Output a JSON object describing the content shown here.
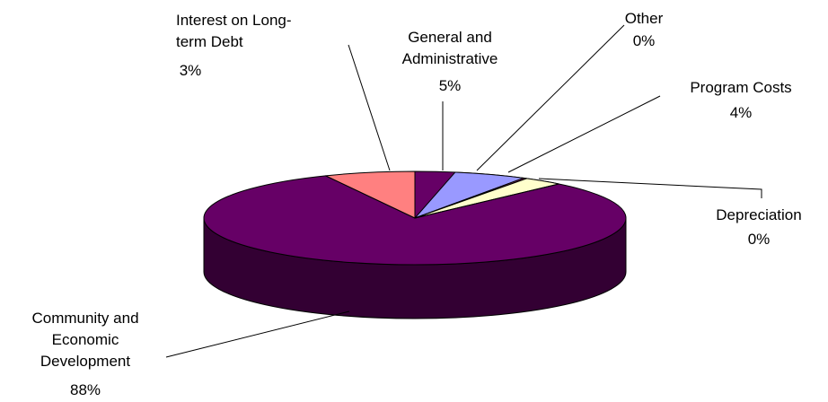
{
  "chart_data": {
    "type": "pie",
    "style": "3d",
    "legend": "none",
    "slices": [
      {
        "name": "Community and Economic Development",
        "value": 88,
        "label_lines": [
          "Community and",
          "Economic",
          "Development"
        ],
        "pct_label": "88%",
        "color": "#660066",
        "side_color": "#330033"
      },
      {
        "name": "Interest on Long-term Debt",
        "value": 3,
        "label_lines": [
          "Interest on Long-",
          "term Debt"
        ],
        "pct_label": "3%",
        "color": "#FF8080",
        "side_color": "#804040"
      },
      {
        "name": "General and Administrative",
        "value": 5,
        "label_lines": [
          "General    and",
          "Administrative"
        ],
        "pct_label": "5%",
        "color": "#9999FF",
        "side_color": "#4D4D80"
      },
      {
        "name": "Other",
        "value": 0,
        "label_lines": [
          "Other"
        ],
        "pct_label": "0%",
        "color": "#993366",
        "side_color": "#4D1A33"
      },
      {
        "name": "Program Costs",
        "value": 4,
        "label_lines": [
          "Program Costs"
        ],
        "pct_label": "4%",
        "color": "#FFFFCC",
        "side_color": "#808066"
      },
      {
        "name": "Depreciation",
        "value": 0,
        "label_lines": [
          "Depreciation"
        ],
        "pct_label": "0%",
        "color": "#CCFFFF",
        "side_color": "#668080"
      }
    ]
  }
}
